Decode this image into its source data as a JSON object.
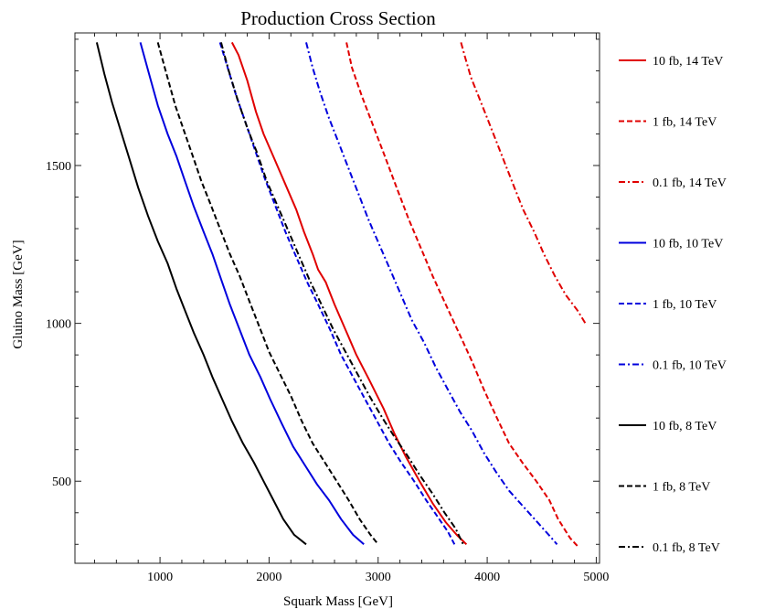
{
  "chart_data": {
    "type": "line",
    "title": "Production Cross Section",
    "xlabel": "Squark Mass [GeV]",
    "ylabel": "Gluino Mass [GeV]",
    "xlim": [
      220,
      5030
    ],
    "ylim": [
      240,
      1920
    ],
    "x_ticks": [
      1000,
      2000,
      3000,
      4000,
      5000
    ],
    "y_ticks": [
      500,
      1000,
      1500
    ],
    "grid": false,
    "legend": "right",
    "series": [
      {
        "name": "10 fb, 14 TeV",
        "color": "#e00000",
        "dash": "solid",
        "points": [
          [
            1660,
            1890
          ],
          [
            1720,
            1850
          ],
          [
            1800,
            1770
          ],
          [
            1880,
            1670
          ],
          [
            1950,
            1600
          ],
          [
            2050,
            1520
          ],
          [
            2150,
            1440
          ],
          [
            2250,
            1360
          ],
          [
            2320,
            1290
          ],
          [
            2400,
            1220
          ],
          [
            2450,
            1170
          ],
          [
            2520,
            1130
          ],
          [
            2600,
            1060
          ],
          [
            2700,
            980
          ],
          [
            2800,
            900
          ],
          [
            2920,
            820
          ],
          [
            3050,
            730
          ],
          [
            3150,
            650
          ],
          [
            3250,
            580
          ],
          [
            3380,
            500
          ],
          [
            3500,
            430
          ],
          [
            3620,
            370
          ],
          [
            3720,
            330
          ],
          [
            3810,
            300
          ]
        ]
      },
      {
        "name": "1 fb, 14 TeV",
        "color": "#e00000",
        "dash": "dashed",
        "points": [
          [
            2710,
            1890
          ],
          [
            2760,
            1810
          ],
          [
            2850,
            1720
          ],
          [
            2950,
            1630
          ],
          [
            3050,
            1540
          ],
          [
            3170,
            1430
          ],
          [
            3280,
            1330
          ],
          [
            3390,
            1240
          ],
          [
            3500,
            1150
          ],
          [
            3620,
            1060
          ],
          [
            3740,
            970
          ],
          [
            3860,
            880
          ],
          [
            3970,
            790
          ],
          [
            4090,
            700
          ],
          [
            4200,
            620
          ],
          [
            4320,
            560
          ],
          [
            4450,
            500
          ],
          [
            4570,
            440
          ],
          [
            4650,
            380
          ],
          [
            4760,
            320
          ],
          [
            4840,
            290
          ]
        ]
      },
      {
        "name": "0.1 fb, 14 TeV",
        "color": "#e00000",
        "dash": "dashdot",
        "points": [
          [
            3760,
            1890
          ],
          [
            3800,
            1840
          ],
          [
            3850,
            1780
          ],
          [
            3920,
            1720
          ],
          [
            4000,
            1650
          ],
          [
            4080,
            1580
          ],
          [
            4170,
            1500
          ],
          [
            4250,
            1430
          ],
          [
            4330,
            1360
          ],
          [
            4430,
            1290
          ],
          [
            4520,
            1220
          ],
          [
            4620,
            1150
          ],
          [
            4720,
            1090
          ],
          [
            4830,
            1040
          ],
          [
            4900,
            1000
          ]
        ]
      },
      {
        "name": "10 fb, 10 TeV",
        "color": "#0000dd",
        "dash": "solid",
        "points": [
          [
            820,
            1890
          ],
          [
            900,
            1790
          ],
          [
            980,
            1690
          ],
          [
            1070,
            1600
          ],
          [
            1150,
            1530
          ],
          [
            1230,
            1450
          ],
          [
            1310,
            1370
          ],
          [
            1400,
            1290
          ],
          [
            1480,
            1220
          ],
          [
            1560,
            1140
          ],
          [
            1640,
            1060
          ],
          [
            1730,
            980
          ],
          [
            1820,
            900
          ],
          [
            1920,
            830
          ],
          [
            2010,
            760
          ],
          [
            2120,
            680
          ],
          [
            2220,
            610
          ],
          [
            2330,
            550
          ],
          [
            2440,
            490
          ],
          [
            2550,
            440
          ],
          [
            2660,
            380
          ],
          [
            2770,
            330
          ],
          [
            2870,
            300
          ]
        ]
      },
      {
        "name": "1 fb, 10 TeV",
        "color": "#0000dd",
        "dash": "dashed",
        "points": [
          [
            1550,
            1890
          ],
          [
            1620,
            1810
          ],
          [
            1700,
            1720
          ],
          [
            1780,
            1640
          ],
          [
            1870,
            1550
          ],
          [
            1960,
            1460
          ],
          [
            2060,
            1370
          ],
          [
            2150,
            1290
          ],
          [
            2250,
            1210
          ],
          [
            2350,
            1130
          ],
          [
            2450,
            1060
          ],
          [
            2560,
            980
          ],
          [
            2660,
            900
          ],
          [
            2770,
            830
          ],
          [
            2880,
            760
          ],
          [
            2990,
            690
          ],
          [
            3100,
            620
          ],
          [
            3210,
            560
          ],
          [
            3330,
            500
          ],
          [
            3440,
            440
          ],
          [
            3540,
            390
          ],
          [
            3640,
            340
          ],
          [
            3700,
            300
          ]
        ]
      },
      {
        "name": "0.1 fb, 10 TeV",
        "color": "#0000dd",
        "dash": "dashdot",
        "points": [
          [
            2340,
            1890
          ],
          [
            2400,
            1810
          ],
          [
            2470,
            1730
          ],
          [
            2550,
            1650
          ],
          [
            2640,
            1570
          ],
          [
            2730,
            1490
          ],
          [
            2820,
            1410
          ],
          [
            2910,
            1330
          ],
          [
            3010,
            1250
          ],
          [
            3110,
            1170
          ],
          [
            3210,
            1090
          ],
          [
            3310,
            1010
          ],
          [
            3420,
            940
          ],
          [
            3530,
            860
          ],
          [
            3640,
            790
          ],
          [
            3750,
            720
          ],
          [
            3860,
            660
          ],
          [
            3970,
            590
          ],
          [
            4080,
            530
          ],
          [
            4200,
            470
          ],
          [
            4330,
            420
          ],
          [
            4460,
            370
          ],
          [
            4590,
            320
          ],
          [
            4640,
            300
          ]
        ]
      },
      {
        "name": "10 fb, 8 TeV",
        "color": "#000000",
        "dash": "solid",
        "points": [
          [
            420,
            1890
          ],
          [
            490,
            1790
          ],
          [
            560,
            1700
          ],
          [
            640,
            1610
          ],
          [
            720,
            1520
          ],
          [
            800,
            1430
          ],
          [
            890,
            1340
          ],
          [
            980,
            1260
          ],
          [
            1070,
            1190
          ],
          [
            1150,
            1110
          ],
          [
            1230,
            1040
          ],
          [
            1310,
            970
          ],
          [
            1400,
            900
          ],
          [
            1480,
            830
          ],
          [
            1570,
            760
          ],
          [
            1660,
            690
          ],
          [
            1760,
            620
          ],
          [
            1860,
            560
          ],
          [
            1950,
            500
          ],
          [
            2040,
            440
          ],
          [
            2130,
            380
          ],
          [
            2230,
            330
          ],
          [
            2340,
            300
          ]
        ]
      },
      {
        "name": "1 fb, 8 TeV",
        "color": "#000000",
        "dash": "dashed",
        "points": [
          [
            980,
            1890
          ],
          [
            1060,
            1790
          ],
          [
            1140,
            1690
          ],
          [
            1220,
            1610
          ],
          [
            1300,
            1530
          ],
          [
            1380,
            1450
          ],
          [
            1460,
            1380
          ],
          [
            1550,
            1300
          ],
          [
            1640,
            1220
          ],
          [
            1730,
            1150
          ],
          [
            1820,
            1070
          ],
          [
            1910,
            990
          ],
          [
            2000,
            910
          ],
          [
            2100,
            840
          ],
          [
            2200,
            770
          ],
          [
            2300,
            690
          ],
          [
            2400,
            620
          ],
          [
            2510,
            560
          ],
          [
            2620,
            500
          ],
          [
            2730,
            440
          ],
          [
            2830,
            380
          ],
          [
            2930,
            330
          ],
          [
            3000,
            300
          ]
        ]
      },
      {
        "name": "0.1 fb, 8 TeV",
        "color": "#000000",
        "dash": "dashdot",
        "points": [
          [
            1560,
            1890
          ],
          [
            1630,
            1800
          ],
          [
            1710,
            1710
          ],
          [
            1800,
            1620
          ],
          [
            1890,
            1540
          ],
          [
            1980,
            1450
          ],
          [
            2080,
            1370
          ],
          [
            2180,
            1290
          ],
          [
            2280,
            1210
          ],
          [
            2380,
            1130
          ],
          [
            2480,
            1060
          ],
          [
            2590,
            980
          ],
          [
            2700,
            910
          ],
          [
            2810,
            840
          ],
          [
            2920,
            770
          ],
          [
            3040,
            700
          ],
          [
            3150,
            640
          ],
          [
            3270,
            580
          ],
          [
            3380,
            520
          ],
          [
            3500,
            460
          ],
          [
            3610,
            400
          ],
          [
            3710,
            350
          ],
          [
            3780,
            300
          ]
        ]
      }
    ]
  }
}
